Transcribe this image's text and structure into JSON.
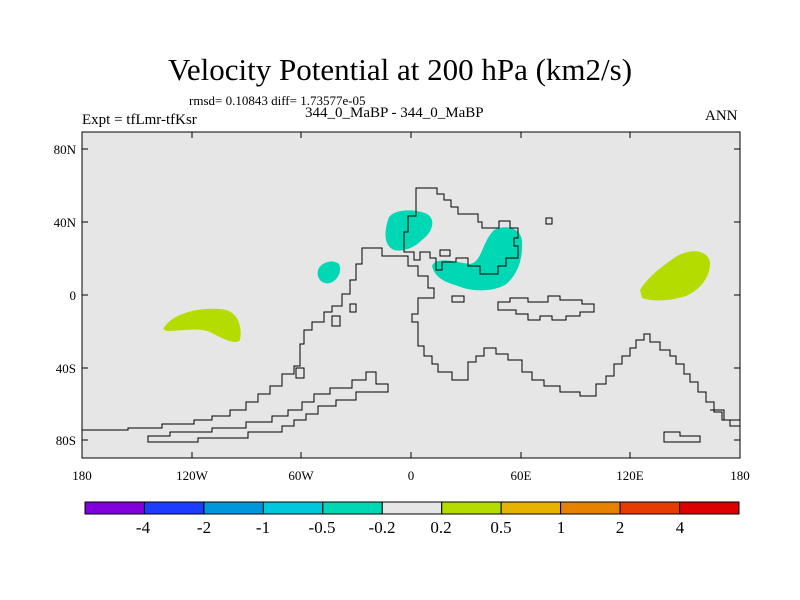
{
  "title": "Velocity Potential at 200 hPa (km2/s)",
  "stats": "rmsd= 0.10843 diff= 1.73577e-05",
  "left_label": "Expt = tfLmr-tfKsr",
  "center_label": "344_0_MaBP - 344_0_MaBP",
  "right_label": "ANN",
  "colors": {
    "background": "#e6e6e6",
    "neg_fill": "#00d7b4",
    "pos_fill": "#b4dc00",
    "coast": "#000000"
  },
  "axes": {
    "x_ticks": [
      "180",
      "120W",
      "60W",
      "0",
      "60E",
      "120E",
      "180"
    ],
    "y_ticks": [
      "80N",
      "40N",
      "0",
      "40S",
      "80S"
    ]
  },
  "colorbar": {
    "colors": [
      "#8200dc",
      "#1e3cff",
      "#0096dc",
      "#00c8dc",
      "#00d7b4",
      "#e6e6e6",
      "#b4dc00",
      "#e6b400",
      "#e68200",
      "#e63c00",
      "#dc0000"
    ],
    "labels": [
      "-4",
      "-2",
      "-1",
      "-0.5",
      "-0.2",
      "0.2",
      "0.5",
      "1",
      "2",
      "4"
    ]
  }
}
